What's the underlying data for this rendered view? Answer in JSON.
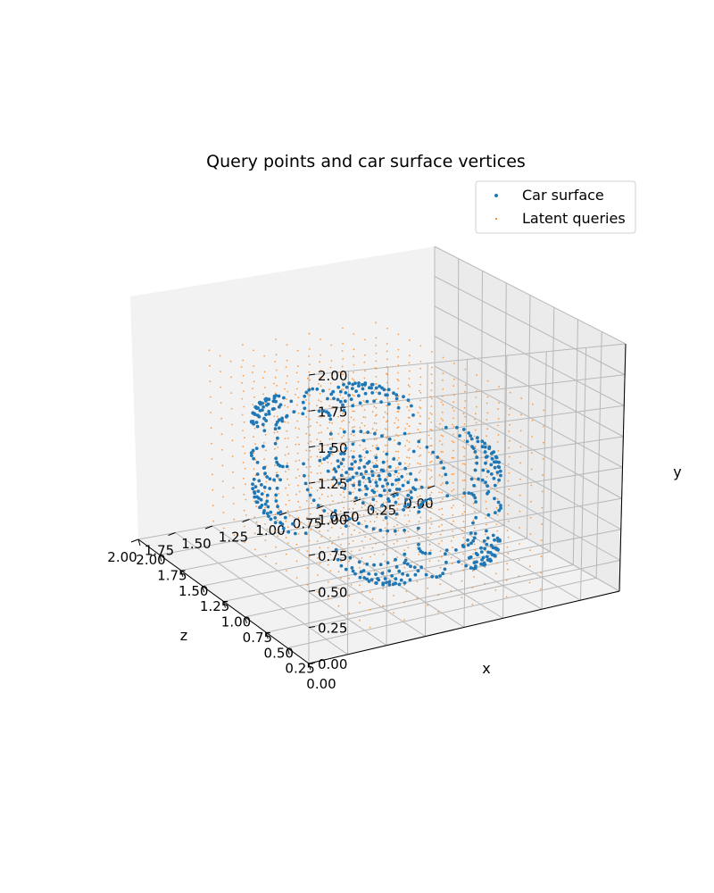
{
  "chart_data": {
    "type": "scatter",
    "projection": "3d",
    "title": "Query points and car surface vertices",
    "xlabel": "x",
    "ylabel": "y",
    "zlabel": "z",
    "xlim": [
      0,
      2
    ],
    "ylim": [
      0,
      2
    ],
    "zlim": [
      0,
      2
    ],
    "x_ticks": [
      "0.00",
      "0.25",
      "0.50",
      "0.75",
      "1.00",
      "1.25",
      "1.50",
      "1.75",
      "2.00"
    ],
    "y_ticks": [
      "0.00",
      "0.25",
      "0.50",
      "0.75",
      "1.00",
      "1.25",
      "1.50",
      "1.75",
      "2.00"
    ],
    "z_ticks": [
      "0.00",
      "0.25",
      "0.50",
      "0.75",
      "1.00",
      "1.25",
      "1.50",
      "1.75",
      "2.00"
    ],
    "grid": true,
    "legend": {
      "placement": "top-right"
    },
    "series": [
      {
        "name": "Car surface",
        "color": "#1f77b4",
        "shape": {
          "x_range": [
            0.2,
            1.8
          ],
          "y_range": [
            0.2,
            1.2
          ],
          "z_range": [
            0.55,
            1.45
          ],
          "rows": 20,
          "cols": 14
        }
      },
      {
        "name": "Latent queries",
        "color": "#ff7f0e",
        "grid": {
          "x_range": [
            0.1,
            1.9
          ],
          "y_range": [
            0.1,
            1.5
          ],
          "z_range": [
            0.45,
            1.55
          ],
          "steps": [
            16,
            12,
            6
          ]
        }
      }
    ]
  }
}
